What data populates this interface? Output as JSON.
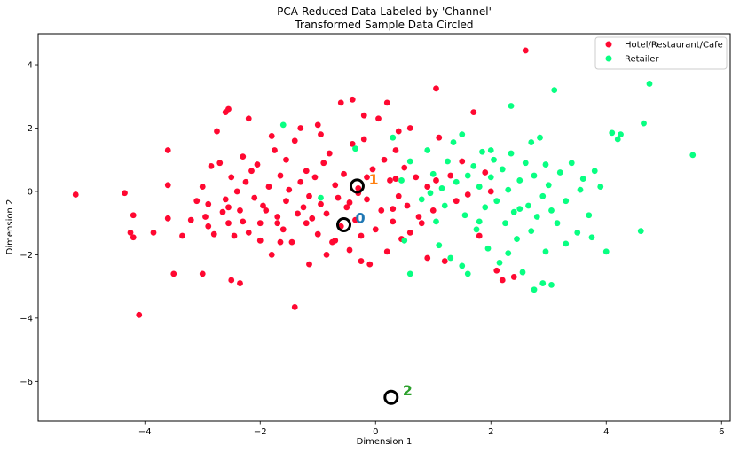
{
  "chart_data": {
    "type": "scatter",
    "title": "PCA-Reduced Data Labeled by 'Channel'",
    "subtitle": "Transformed Sample Data Circled",
    "xlabel": "Dimension 1",
    "ylabel": "Dimension 2",
    "xlim": [
      -5.85,
      6.15
    ],
    "ylim": [
      -7.25,
      4.98
    ],
    "x_ticks": [
      -4,
      -2,
      0,
      2,
      4,
      6
    ],
    "y_ticks": [
      -6,
      -4,
      -2,
      0,
      2,
      4
    ],
    "x_tick_labels": [
      "−4",
      "−2",
      "0",
      "2",
      "4",
      "6"
    ],
    "y_tick_labels": [
      "−6",
      "−4",
      "−2",
      "0",
      "2",
      "4"
    ],
    "grid": false,
    "legend": {
      "position": "top-right"
    },
    "series": [
      {
        "name": "Hotel/Restaurant/Cafe",
        "color": "#ff0831",
        "points": [
          [
            -5.2,
            -0.1
          ],
          [
            -4.35,
            -0.05
          ],
          [
            -4.2,
            -0.75
          ],
          [
            -4.25,
            -1.3
          ],
          [
            -4.2,
            -1.45
          ],
          [
            -4.1,
            -3.9
          ],
          [
            -3.85,
            -1.3
          ],
          [
            -3.6,
            -0.85
          ],
          [
            -3.6,
            0.2
          ],
          [
            -3.6,
            1.3
          ],
          [
            -3.5,
            -2.6
          ],
          [
            -3.35,
            -1.4
          ],
          [
            -3.2,
            -0.9
          ],
          [
            -3.1,
            -0.3
          ],
          [
            -3.0,
            0.15
          ],
          [
            -2.95,
            -0.8
          ],
          [
            -2.9,
            -1.1
          ],
          [
            -2.9,
            -0.4
          ],
          [
            -2.85,
            0.8
          ],
          [
            -2.8,
            -1.35
          ],
          [
            -2.7,
            0.9
          ],
          [
            -2.75,
            1.9
          ],
          [
            -2.65,
            -0.65
          ],
          [
            -2.6,
            -0.25
          ],
          [
            -2.55,
            -1.0
          ],
          [
            -2.55,
            -0.5
          ],
          [
            -2.6,
            2.5
          ],
          [
            -2.55,
            2.6
          ],
          [
            -2.5,
            -2.8
          ],
          [
            -2.45,
            -1.4
          ],
          [
            -2.4,
            0.0
          ],
          [
            -2.35,
            -0.6
          ],
          [
            -2.3,
            -0.95
          ],
          [
            -2.3,
            1.1
          ],
          [
            -2.25,
            0.3
          ],
          [
            -2.2,
            -1.3
          ],
          [
            -2.15,
            0.65
          ],
          [
            -2.1,
            -0.2
          ],
          [
            -2.05,
            0.85
          ],
          [
            -2.0,
            -1.0
          ],
          [
            -1.95,
            -0.45
          ],
          [
            -1.9,
            -0.6
          ],
          [
            -1.85,
            0.15
          ],
          [
            -1.8,
            -2.0
          ],
          [
            -1.75,
            1.3
          ],
          [
            -1.7,
            -0.8
          ],
          [
            -1.65,
            0.5
          ],
          [
            -1.6,
            -1.2
          ],
          [
            -1.55,
            -0.3
          ],
          [
            -1.5,
            0.05
          ],
          [
            -1.45,
            -1.6
          ],
          [
            -1.4,
            1.6
          ],
          [
            -1.35,
            -0.7
          ],
          [
            -1.3,
            0.3
          ],
          [
            -1.25,
            -0.5
          ],
          [
            -1.2,
            -1.0
          ],
          [
            -1.2,
            0.65
          ],
          [
            -1.15,
            -0.15
          ],
          [
            -1.1,
            -0.85
          ],
          [
            -1.05,
            0.45
          ],
          [
            -1.0,
            -1.35
          ],
          [
            -0.95,
            -0.4
          ],
          [
            -0.9,
            0.9
          ],
          [
            -0.85,
            -0.7
          ],
          [
            -0.8,
            1.2
          ],
          [
            -0.75,
            -1.6
          ],
          [
            -0.7,
            0.2
          ],
          [
            -0.65,
            -0.2
          ],
          [
            -0.6,
            -1.1
          ],
          [
            -0.55,
            0.55
          ],
          [
            -0.5,
            -0.5
          ],
          [
            -0.45,
            -1.85
          ],
          [
            -0.4,
            1.5
          ],
          [
            -0.35,
            -0.9
          ],
          [
            -0.3,
            0.1
          ],
          [
            -0.25,
            -1.4
          ],
          [
            -0.2,
            1.65
          ],
          [
            -0.15,
            -0.25
          ],
          [
            -0.1,
            -2.3
          ],
          [
            -0.05,
            0.7
          ],
          [
            0.0,
            -1.2
          ],
          [
            0.05,
            2.3
          ],
          [
            0.1,
            -0.6
          ],
          [
            0.15,
            1.0
          ],
          [
            0.2,
            -1.9
          ],
          [
            0.25,
            0.35
          ],
          [
            0.3,
            -0.95
          ],
          [
            0.35,
            1.3
          ],
          [
            0.4,
            -0.15
          ],
          [
            0.45,
            -1.5
          ],
          [
            0.5,
            0.75
          ],
          [
            0.55,
            -0.45
          ],
          [
            0.6,
            2.0
          ],
          [
            0.7,
            0.45
          ],
          [
            0.8,
            -1.0
          ],
          [
            0.9,
            0.15
          ],
          [
            1.0,
            -0.6
          ],
          [
            1.1,
            1.7
          ],
          [
            1.2,
            -2.2
          ],
          [
            1.3,
            0.5
          ],
          [
            1.4,
            -0.3
          ],
          [
            1.5,
            0.95
          ],
          [
            1.6,
            -0.1
          ],
          [
            1.7,
            2.5
          ],
          [
            1.8,
            -1.4
          ],
          [
            1.9,
            0.6
          ],
          [
            2.0,
            0.0
          ],
          [
            2.1,
            -2.5
          ],
          [
            2.2,
            -2.8
          ],
          [
            2.4,
            -2.7
          ],
          [
            2.6,
            4.45
          ],
          [
            1.05,
            0.35
          ],
          [
            0.35,
            0.4
          ],
          [
            0.3,
            -0.55
          ],
          [
            -3.0,
            -2.6
          ],
          [
            -2.35,
            -2.9
          ],
          [
            -1.4,
            -3.65
          ],
          [
            -1.7,
            -1.0
          ],
          [
            -1.0,
            2.1
          ],
          [
            -0.95,
            1.8
          ],
          [
            -0.6,
            2.8
          ],
          [
            -0.4,
            2.9
          ],
          [
            -0.2,
            2.4
          ],
          [
            -1.3,
            2.0
          ],
          [
            -2.2,
            2.3
          ],
          [
            -0.85,
            -2.0
          ],
          [
            0.6,
            -1.3
          ],
          [
            0.75,
            -0.8
          ],
          [
            -0.3,
            -0.05
          ],
          [
            -0.15,
            0.45
          ],
          [
            -1.55,
            1.0
          ],
          [
            -2.0,
            -1.55
          ],
          [
            -1.15,
            -2.3
          ],
          [
            -0.45,
            -0.35
          ],
          [
            0.9,
            -2.1
          ],
          [
            1.05,
            3.25
          ],
          [
            0.4,
            1.9
          ],
          [
            0.2,
            2.8
          ],
          [
            -1.8,
            1.75
          ],
          [
            -1.65,
            -1.6
          ],
          [
            -0.7,
            -1.55
          ],
          [
            -2.5,
            0.45
          ],
          [
            -0.25,
            -2.2
          ]
        ]
      },
      {
        "name": "Retailer",
        "color": "#08ff82",
        "points": [
          [
            -1.6,
            2.1
          ],
          [
            -0.95,
            -0.2
          ],
          [
            -0.35,
            1.35
          ],
          [
            0.3,
            1.7
          ],
          [
            0.45,
            0.35
          ],
          [
            0.5,
            -1.55
          ],
          [
            0.6,
            -2.6
          ],
          [
            0.8,
            -0.25
          ],
          [
            0.9,
            1.3
          ],
          [
            1.0,
            0.55
          ],
          [
            1.05,
            -0.95
          ],
          [
            1.1,
            -1.7
          ],
          [
            1.2,
            -0.45
          ],
          [
            1.25,
            0.95
          ],
          [
            1.3,
            -2.1
          ],
          [
            1.4,
            0.3
          ],
          [
            1.5,
            1.8
          ],
          [
            1.55,
            -0.75
          ],
          [
            1.6,
            -2.6
          ],
          [
            1.7,
            0.8
          ],
          [
            1.75,
            -1.2
          ],
          [
            1.8,
            0.15
          ],
          [
            1.85,
            1.25
          ],
          [
            1.9,
            -0.5
          ],
          [
            1.95,
            -1.8
          ],
          [
            2.0,
            0.45
          ],
          [
            2.05,
            1.0
          ],
          [
            2.1,
            -0.3
          ],
          [
            2.15,
            -2.25
          ],
          [
            2.2,
            0.7
          ],
          [
            2.25,
            -1.0
          ],
          [
            2.3,
            0.05
          ],
          [
            2.35,
            1.2
          ],
          [
            2.4,
            -0.65
          ],
          [
            2.45,
            -1.5
          ],
          [
            2.5,
            0.35
          ],
          [
            2.55,
            -2.55
          ],
          [
            2.6,
            0.9
          ],
          [
            2.65,
            -0.45
          ],
          [
            2.7,
            -1.25
          ],
          [
            2.75,
            0.5
          ],
          [
            2.8,
            -0.8
          ],
          [
            2.85,
            1.7
          ],
          [
            2.9,
            -0.15
          ],
          [
            2.95,
            -1.9
          ],
          [
            3.0,
            0.2
          ],
          [
            3.05,
            -0.6
          ],
          [
            3.1,
            3.2
          ],
          [
            3.15,
            -1.0
          ],
          [
            3.2,
            0.6
          ],
          [
            3.3,
            -0.3
          ],
          [
            3.4,
            0.9
          ],
          [
            3.5,
            -1.3
          ],
          [
            3.6,
            0.4
          ],
          [
            3.7,
            -0.75
          ],
          [
            3.8,
            0.65
          ],
          [
            3.9,
            0.15
          ],
          [
            4.0,
            -1.9
          ],
          [
            4.1,
            1.85
          ],
          [
            4.2,
            1.65
          ],
          [
            4.25,
            1.8
          ],
          [
            4.6,
            -1.25
          ],
          [
            4.65,
            2.15
          ],
          [
            4.75,
            3.4
          ],
          [
            5.5,
            1.15
          ],
          [
            2.35,
            2.7
          ],
          [
            2.9,
            -2.9
          ],
          [
            3.05,
            -2.95
          ],
          [
            2.75,
            -3.1
          ],
          [
            1.5,
            -2.35
          ],
          [
            2.3,
            -1.95
          ],
          [
            1.6,
            0.5
          ],
          [
            0.95,
            -0.05
          ],
          [
            1.35,
            1.55
          ],
          [
            2.0,
            1.3
          ],
          [
            2.7,
            1.55
          ],
          [
            3.3,
            -1.65
          ],
          [
            3.75,
            -1.45
          ],
          [
            0.6,
            0.95
          ],
          [
            1.15,
            0.1
          ],
          [
            2.5,
            -0.55
          ],
          [
            2.95,
            0.85
          ],
          [
            3.55,
            0.05
          ],
          [
            1.8,
            -0.95
          ]
        ]
      }
    ],
    "samples": [
      {
        "label": "0",
        "x": -0.55,
        "y": -1.05,
        "label_color": "#1f77b4"
      },
      {
        "label": "1",
        "x": -0.32,
        "y": 0.17,
        "label_color": "#ff7f0e"
      },
      {
        "label": "2",
        "x": 0.27,
        "y": -6.5,
        "label_color": "#2ca02c"
      }
    ]
  }
}
